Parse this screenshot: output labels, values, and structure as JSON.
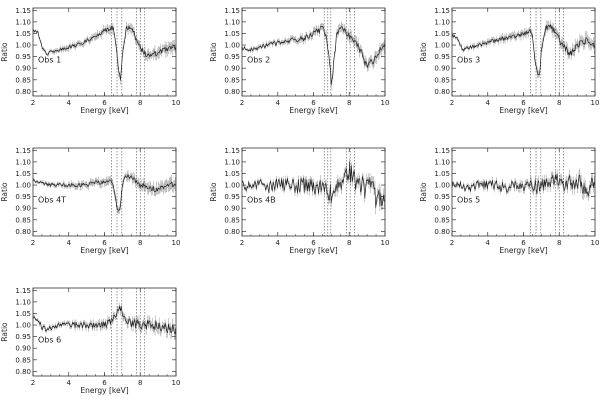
{
  "chart_data": [
    {
      "type": "line",
      "label": "Obs 1",
      "xlabel": "Energy [keV]",
      "ylabel": "Ratio",
      "xlim": [
        2,
        10
      ],
      "ylim": [
        0.78,
        1.16
      ],
      "xticks": [
        2,
        4,
        6,
        8,
        10
      ],
      "yticks": [
        0.8,
        0.85,
        0.9,
        0.95,
        1.0,
        1.05,
        1.1,
        1.15
      ],
      "xticklabels": [
        "2",
        "4",
        "6",
        "8",
        "10"
      ],
      "yticklabels": [
        "0.80",
        "0.85",
        "0.90",
        "0.95",
        "1.00",
        "1.05",
        "1.10",
        "1.15"
      ],
      "reference_lines_keV": [
        6.4,
        6.7,
        6.97,
        7.8,
        8.0,
        8.25
      ],
      "x": [
        2.0,
        2.3,
        2.5,
        2.8,
        3.0,
        3.5,
        4.0,
        4.5,
        5.0,
        5.5,
        6.0,
        6.3,
        6.5,
        6.6,
        6.7,
        6.8,
        6.9,
        7.0,
        7.2,
        7.4,
        7.6,
        7.8,
        8.0,
        8.3,
        8.6,
        9.0,
        9.5,
        10.0
      ],
      "values": [
        1.07,
        1.05,
        0.99,
        0.96,
        0.97,
        0.98,
        0.99,
        1.0,
        1.02,
        1.04,
        1.06,
        1.07,
        1.07,
        1.03,
        0.95,
        0.88,
        0.85,
        0.95,
        1.07,
        1.08,
        1.06,
        1.02,
        0.99,
        0.96,
        0.95,
        0.97,
        0.98,
        0.99
      ]
    },
    {
      "type": "line",
      "label": "Obs 2",
      "xlabel": "Energy [keV]",
      "ylabel": "Ratio",
      "xlim": [
        2,
        10
      ],
      "ylim": [
        0.78,
        1.16
      ],
      "xticks": [
        2,
        4,
        6,
        8,
        10
      ],
      "yticks": [
        0.8,
        0.85,
        0.9,
        0.95,
        1.0,
        1.05,
        1.1,
        1.15
      ],
      "xticklabels": [
        "2",
        "4",
        "6",
        "8",
        "10"
      ],
      "yticklabels": [
        "0.80",
        "0.85",
        "0.90",
        "0.95",
        "1.00",
        "1.05",
        "1.10",
        "1.15"
      ],
      "reference_lines_keV": [
        6.6,
        6.8,
        6.97,
        7.85,
        8.05,
        8.3
      ],
      "x": [
        2.0,
        2.5,
        3.0,
        3.5,
        4.0,
        4.5,
        5.0,
        5.5,
        6.0,
        6.5,
        6.7,
        6.9,
        7.0,
        7.1,
        7.3,
        7.5,
        7.8,
        8.0,
        8.3,
        8.6,
        9.0,
        9.3,
        9.6,
        10.0
      ],
      "values": [
        0.99,
        0.98,
        0.99,
        1.0,
        1.01,
        1.02,
        1.02,
        1.03,
        1.05,
        1.07,
        1.05,
        0.93,
        0.82,
        0.9,
        1.05,
        1.08,
        1.06,
        1.04,
        1.02,
        0.98,
        0.9,
        0.93,
        0.97,
        0.99
      ]
    },
    {
      "type": "line",
      "label": "Obs 3",
      "xlabel": "Energy [keV]",
      "ylabel": "Ratio",
      "xlim": [
        2,
        10
      ],
      "ylim": [
        0.78,
        1.16
      ],
      "xticks": [
        2,
        4,
        6,
        8,
        10
      ],
      "yticks": [
        0.8,
        0.85,
        0.9,
        0.95,
        1.0,
        1.05,
        1.1,
        1.15
      ],
      "xticklabels": [
        "2",
        "4",
        "6",
        "8",
        "10"
      ],
      "yticklabels": [
        "0.80",
        "0.85",
        "0.90",
        "0.95",
        "1.00",
        "1.05",
        "1.10",
        "1.15"
      ],
      "reference_lines_keV": [
        6.4,
        6.7,
        6.97,
        7.8,
        8.0,
        8.25
      ],
      "x": [
        2.0,
        2.3,
        2.6,
        3.0,
        3.5,
        4.0,
        4.5,
        5.0,
        5.5,
        6.0,
        6.3,
        6.5,
        6.6,
        6.7,
        6.8,
        6.9,
        7.0,
        7.2,
        7.4,
        7.6,
        7.8,
        8.0,
        8.3,
        8.6,
        9.0,
        9.5,
        10.0
      ],
      "values": [
        1.04,
        1.03,
        0.98,
        0.99,
        1.0,
        1.01,
        1.02,
        1.03,
        1.04,
        1.05,
        1.06,
        1.04,
        0.97,
        0.9,
        0.87,
        0.88,
        0.97,
        1.07,
        1.08,
        1.07,
        1.05,
        1.02,
        0.99,
        0.96,
        1.0,
        1.02,
        1.0
      ]
    },
    {
      "type": "line",
      "label": "Obs 4T",
      "xlabel": "Energy [keV]",
      "ylabel": "Ratio",
      "xlim": [
        2,
        10
      ],
      "ylim": [
        0.78,
        1.16
      ],
      "xticks": [
        2,
        4,
        6,
        8,
        10
      ],
      "yticks": [
        0.8,
        0.85,
        0.9,
        0.95,
        1.0,
        1.05,
        1.1,
        1.15
      ],
      "xticklabels": [
        "2",
        "4",
        "6",
        "8",
        "10"
      ],
      "yticklabels": [
        "0.80",
        "0.85",
        "0.90",
        "0.95",
        "1.00",
        "1.05",
        "1.10",
        "1.15"
      ],
      "reference_lines_keV": [
        6.4,
        6.7,
        6.97,
        7.8,
        8.0,
        8.25
      ],
      "x": [
        2.0,
        2.5,
        3.0,
        3.5,
        4.0,
        4.5,
        5.0,
        5.5,
        6.0,
        6.3,
        6.5,
        6.6,
        6.7,
        6.8,
        6.9,
        7.0,
        7.2,
        7.4,
        7.6,
        8.0,
        8.5,
        9.0,
        9.5,
        10.0
      ],
      "values": [
        1.02,
        1.01,
        1.0,
        1.0,
        1.0,
        1.0,
        1.0,
        1.01,
        1.01,
        1.02,
        1.0,
        0.96,
        0.9,
        0.88,
        0.92,
        1.0,
        1.04,
        1.04,
        1.03,
        1.0,
        0.99,
        0.98,
        1.0,
        1.0
      ]
    },
    {
      "type": "line",
      "label": "Obs 4B",
      "xlabel": "Energy [keV]",
      "ylabel": "Ratio",
      "xlim": [
        2,
        10
      ],
      "ylim": [
        0.78,
        1.16
      ],
      "xticks": [
        2,
        4,
        6,
        8,
        10
      ],
      "yticks": [
        0.8,
        0.85,
        0.9,
        0.95,
        1.0,
        1.05,
        1.1,
        1.15
      ],
      "xticklabels": [
        "2",
        "4",
        "6",
        "8",
        "10"
      ],
      "yticklabels": [
        "0.80",
        "0.85",
        "0.90",
        "0.95",
        "1.00",
        "1.05",
        "1.10",
        "1.15"
      ],
      "reference_lines_keV": [
        6.6,
        6.8,
        6.97,
        7.85,
        8.05,
        8.3
      ],
      "x": [
        2.0,
        2.5,
        3.0,
        3.5,
        4.0,
        4.5,
        5.0,
        5.5,
        6.0,
        6.5,
        6.8,
        7.0,
        7.2,
        7.5,
        7.8,
        8.0,
        8.3,
        8.6,
        9.0,
        9.3,
        9.6,
        10.0
      ],
      "values": [
        1.0,
        0.99,
        1.0,
        0.99,
        1.0,
        1.0,
        0.99,
        1.0,
        0.99,
        1.0,
        0.97,
        0.96,
        0.99,
        1.01,
        1.04,
        1.06,
        1.02,
        1.0,
        0.98,
        1.0,
        0.92,
        0.98
      ]
    },
    {
      "type": "line",
      "label": "Obs 5",
      "xlabel": "Energy [keV]",
      "ylabel": "Ratio",
      "xlim": [
        2,
        10
      ],
      "ylim": [
        0.78,
        1.16
      ],
      "xticks": [
        2,
        4,
        6,
        8,
        10
      ],
      "yticks": [
        0.8,
        0.85,
        0.9,
        0.95,
        1.0,
        1.05,
        1.1,
        1.15
      ],
      "xticklabels": [
        "2",
        "4",
        "6",
        "8",
        "10"
      ],
      "yticklabels": [
        "0.80",
        "0.85",
        "0.90",
        "0.95",
        "1.00",
        "1.05",
        "1.10",
        "1.15"
      ],
      "reference_lines_keV": [
        6.4,
        6.7,
        6.97,
        7.8,
        8.0,
        8.25
      ],
      "x": [
        2.0,
        2.5,
        3.0,
        3.5,
        4.0,
        4.5,
        5.0,
        5.5,
        6.0,
        6.5,
        6.8,
        7.0,
        7.3,
        7.6,
        7.8,
        8.0,
        8.3,
        8.6,
        9.0,
        9.3,
        9.6,
        10.0
      ],
      "values": [
        1.0,
        1.0,
        0.99,
        1.0,
        1.0,
        1.0,
        0.99,
        1.0,
        1.0,
        1.0,
        0.99,
        1.01,
        1.0,
        1.01,
        1.03,
        1.02,
        1.0,
        1.01,
        1.02,
        1.0,
        0.98,
        1.01
      ]
    },
    {
      "type": "line",
      "label": "Obs 6",
      "xlabel": "Energy [keV]",
      "ylabel": "Ratio",
      "xlim": [
        2,
        10
      ],
      "ylim": [
        0.78,
        1.16
      ],
      "xticks": [
        2,
        4,
        6,
        8,
        10
      ],
      "yticks": [
        0.8,
        0.85,
        0.9,
        0.95,
        1.0,
        1.05,
        1.1,
        1.15
      ],
      "xticklabels": [
        "2",
        "4",
        "6",
        "8",
        "10"
      ],
      "yticklabels": [
        "0.80",
        "0.85",
        "0.90",
        "0.95",
        "1.00",
        "1.05",
        "1.10",
        "1.15"
      ],
      "reference_lines_keV": [
        6.4,
        6.7,
        6.97,
        7.8,
        8.0,
        8.25
      ],
      "x": [
        2.0,
        2.3,
        2.5,
        2.8,
        3.0,
        3.5,
        4.0,
        4.5,
        5.0,
        5.5,
        6.0,
        6.3,
        6.5,
        6.7,
        6.8,
        6.9,
        7.0,
        7.2,
        7.4,
        7.6,
        8.0,
        8.5,
        9.0,
        9.5,
        10.0
      ],
      "values": [
        1.03,
        1.02,
        0.99,
        0.98,
        0.99,
        1.0,
        1.0,
        1.0,
        1.0,
        1.0,
        1.0,
        1.01,
        1.03,
        1.05,
        1.07,
        1.08,
        1.06,
        1.02,
        1.01,
        1.01,
        1.0,
        1.0,
        1.0,
        0.99,
        0.98
      ]
    }
  ]
}
